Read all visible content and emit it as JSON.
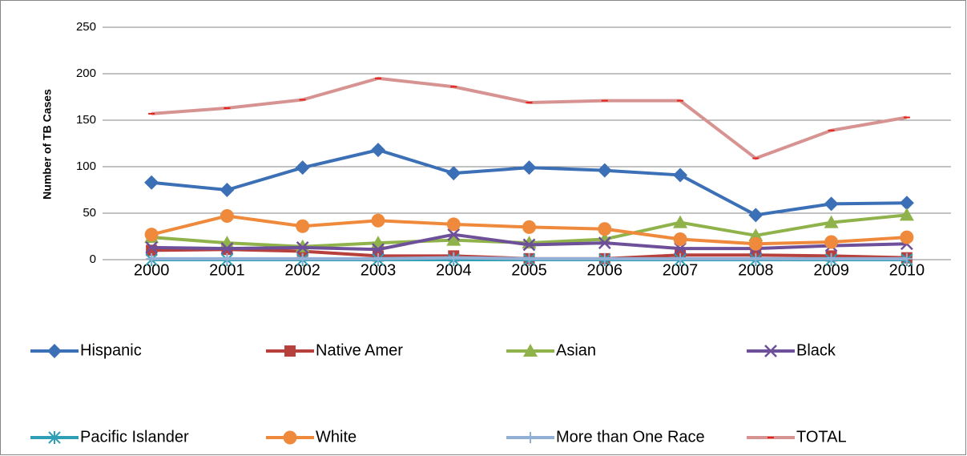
{
  "chart_data": {
    "type": "line",
    "y_label": "Number of TB Cases",
    "categories": [
      "2000",
      "2001",
      "2002",
      "2003",
      "2004",
      "2005",
      "2006",
      "2007",
      "2008",
      "2009",
      "2010"
    ],
    "ylim": [
      0,
      250
    ],
    "yticks": [
      0,
      50,
      100,
      150,
      200,
      250
    ],
    "grid": true,
    "legend": "bottom",
    "series": [
      {
        "name": "Hispanic",
        "color": "#3b6fb6",
        "marker": "diamond",
        "values": [
          83,
          75,
          99,
          118,
          93,
          99,
          96,
          91,
          48,
          60,
          61
        ]
      },
      {
        "name": "Native Amer",
        "color": "#b7403c",
        "marker": "square",
        "values": [
          10,
          11,
          9,
          4,
          4,
          1,
          1,
          5,
          5,
          4,
          2
        ]
      },
      {
        "name": "Asian",
        "color": "#8fb24a",
        "marker": "triangle",
        "values": [
          24,
          18,
          14,
          18,
          21,
          18,
          22,
          40,
          26,
          40,
          48
        ]
      },
      {
        "name": "Black",
        "color": "#6e4f99",
        "marker": "x",
        "values": [
          13,
          12,
          13,
          11,
          27,
          16,
          18,
          12,
          12,
          15,
          17
        ]
      },
      {
        "name": "Pacific Islander",
        "color": "#2e9fb5",
        "marker": "star",
        "values": [
          0,
          0,
          0,
          0,
          0,
          0,
          0,
          0,
          0,
          0,
          0
        ]
      },
      {
        "name": "White",
        "color": "#ef8a3c",
        "marker": "circle",
        "values": [
          27,
          47,
          36,
          42,
          38,
          35,
          33,
          22,
          17,
          19,
          24
        ]
      },
      {
        "name": "More than One Race",
        "color": "#92b0d6",
        "marker": "plus",
        "values": [
          1,
          1,
          1,
          1,
          2,
          1,
          1,
          1,
          1,
          1,
          1
        ]
      },
      {
        "name": "TOTAL",
        "color": "#d69391",
        "marker": "dash",
        "values": [
          157,
          163,
          172,
          195,
          186,
          169,
          171,
          171,
          109,
          139,
          153
        ]
      }
    ]
  }
}
